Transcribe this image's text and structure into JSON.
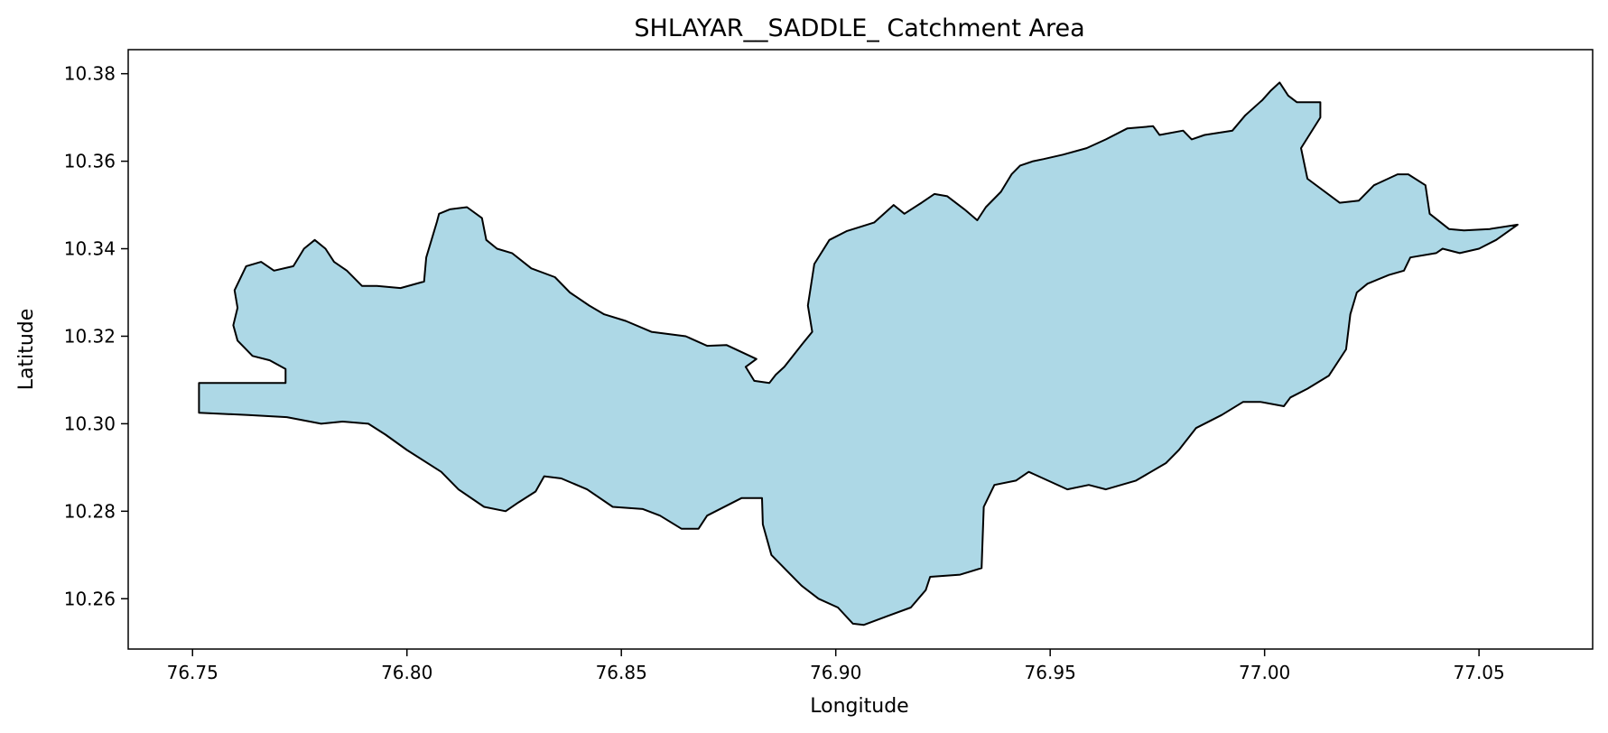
{
  "chart_data": {
    "type": "area",
    "title": "SHLAYAR__SADDLE_ Catchment Area",
    "xlabel": "Longitude",
    "ylabel": "Latitude",
    "xlim": [
      76.735,
      77.0765
    ],
    "ylim": [
      10.2485,
      10.3855
    ],
    "x_ticks": [
      "76.75",
      "76.80",
      "76.85",
      "76.90",
      "76.95",
      "77.00",
      "77.05"
    ],
    "y_ticks": [
      "10.26",
      "10.28",
      "10.30",
      "10.32",
      "10.34",
      "10.36",
      "10.38"
    ],
    "grid": false,
    "colors": {
      "fill": "#add8e6",
      "edge": "#000000"
    },
    "series": [
      {
        "x": [
          76.7515,
          76.7717,
          76.7717,
          76.768,
          76.764,
          76.7605,
          76.7595,
          76.7605,
          76.7598,
          76.7625,
          76.766,
          76.769,
          76.7735,
          76.776,
          76.7785,
          76.781,
          76.783,
          76.786,
          76.7895,
          76.793,
          76.7985,
          76.804,
          76.8045,
          76.807,
          76.8075,
          76.81,
          76.814,
          76.8175,
          76.8185,
          76.821,
          76.8245,
          76.829,
          76.8345,
          76.838,
          76.8425,
          76.846,
          76.851,
          76.857,
          76.865,
          76.87,
          76.8745,
          76.8815,
          76.879,
          76.881,
          76.8845,
          76.886,
          76.888,
          76.892,
          76.8945,
          76.8935,
          76.895,
          76.8985,
          76.9025,
          76.909,
          76.9135,
          76.916,
          76.92,
          76.923,
          76.926,
          76.93,
          76.933,
          76.935,
          76.9385,
          76.941,
          76.943,
          76.946,
          76.9485,
          76.953,
          76.9585,
          76.963,
          76.968,
          76.974,
          76.9755,
          76.981,
          76.983,
          76.986,
          76.9925,
          76.9955,
          76.9995,
          77.0015,
          77.0035,
          77.0055,
          77.0075,
          77.013,
          77.013,
          77.0085,
          77.01,
          77.0175,
          77.022,
          77.0255,
          77.031,
          77.0335,
          77.0375,
          77.0385,
          77.043,
          77.0465,
          77.0525,
          77.059,
          77.054,
          77.05,
          77.0455,
          77.0415,
          77.04,
          77.034,
          77.0325,
          77.029,
          77.024,
          77.0215,
          77.02,
          77.019,
          77.015,
          77.01,
          77.006,
          77.0045,
          76.999,
          76.995,
          76.99,
          76.984,
          76.98,
          76.977,
          76.97,
          76.963,
          76.959,
          76.954,
          76.945,
          76.942,
          76.937,
          76.9345,
          76.934,
          76.929,
          76.922,
          76.921,
          76.9175,
          76.912,
          76.9065,
          76.904,
          76.9005,
          76.896,
          76.892,
          76.889,
          76.885,
          76.883,
          76.8828,
          76.878,
          76.87,
          76.868,
          76.864,
          76.859,
          76.855,
          76.848,
          76.842,
          76.836,
          76.832,
          76.83,
          76.826,
          76.823,
          76.818,
          76.812,
          76.808,
          76.8,
          76.795,
          76.791,
          76.785,
          76.78,
          76.772,
          76.763,
          76.7515,
          76.7515
        ],
        "y": [
          10.3093,
          10.3093,
          10.3125,
          10.3145,
          10.3155,
          10.319,
          10.3225,
          10.3265,
          10.3305,
          10.336,
          10.337,
          10.335,
          10.336,
          10.34,
          10.342,
          10.34,
          10.337,
          10.335,
          10.3315,
          10.3315,
          10.331,
          10.3325,
          10.338,
          10.3462,
          10.348,
          10.349,
          10.3495,
          10.347,
          10.342,
          10.34,
          10.339,
          10.3355,
          10.3335,
          10.33,
          10.327,
          10.325,
          10.3235,
          10.321,
          10.32,
          10.3178,
          10.318,
          10.3148,
          10.313,
          10.3098,
          10.3093,
          10.3112,
          10.313,
          10.318,
          10.321,
          10.327,
          10.3365,
          10.342,
          10.344,
          10.346,
          10.35,
          10.348,
          10.3505,
          10.3525,
          10.352,
          10.349,
          10.3465,
          10.3495,
          10.353,
          10.357,
          10.359,
          10.36,
          10.3605,
          10.3615,
          10.363,
          10.365,
          10.3675,
          10.368,
          10.366,
          10.367,
          10.365,
          10.366,
          10.367,
          10.3705,
          10.374,
          10.3762,
          10.378,
          10.375,
          10.3735,
          10.3735,
          10.37,
          10.363,
          10.356,
          10.3505,
          10.351,
          10.3545,
          10.357,
          10.357,
          10.3545,
          10.348,
          10.3445,
          10.3442,
          10.3445,
          10.3455,
          10.342,
          10.34,
          10.339,
          10.34,
          10.339,
          10.338,
          10.335,
          10.334,
          10.332,
          10.33,
          10.325,
          10.317,
          10.311,
          10.308,
          10.306,
          10.304,
          10.305,
          10.305,
          10.302,
          10.299,
          10.294,
          10.291,
          10.287,
          10.285,
          10.286,
          10.285,
          10.289,
          10.287,
          10.286,
          10.281,
          10.267,
          10.2655,
          10.265,
          10.262,
          10.258,
          10.256,
          10.254,
          10.2543,
          10.258,
          10.26,
          10.263,
          10.266,
          10.27,
          10.277,
          10.283,
          10.283,
          10.279,
          10.276,
          10.276,
          10.279,
          10.2805,
          10.281,
          10.285,
          10.2875,
          10.288,
          10.2845,
          10.282,
          10.28,
          10.281,
          10.285,
          10.289,
          10.294,
          10.2975,
          10.3,
          10.3005,
          10.3,
          10.3015,
          10.302,
          10.3025,
          10.3093
        ]
      }
    ]
  }
}
